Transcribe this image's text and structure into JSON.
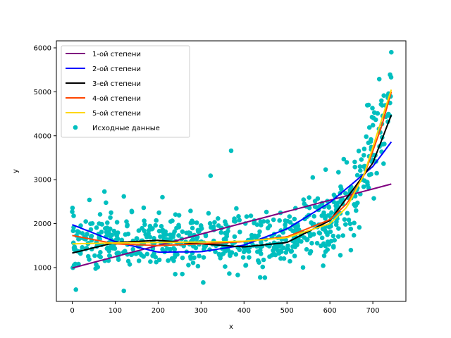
{
  "chart_data": {
    "type": "scatter",
    "title": "",
    "xlabel": "x",
    "ylabel": "y",
    "xlim": [
      -37,
      777
    ],
    "ylim": [
      230,
      6160
    ],
    "xticks": [
      0,
      100,
      200,
      300,
      400,
      500,
      600,
      700
    ],
    "yticks": [
      1000,
      2000,
      3000,
      4000,
      5000,
      6000
    ],
    "xtick_labels": [
      "0",
      "100",
      "200",
      "300",
      "400",
      "500",
      "600",
      "700"
    ],
    "ytick_labels": [
      "1000",
      "2000",
      "3000",
      "4000",
      "5000",
      "6000"
    ],
    "grid": false,
    "legend_position": "top-left",
    "scatter": {
      "name": "Исходные данные",
      "color": "#00bfbf",
      "x_range": [
        0,
        743
      ],
      "count": 700,
      "points": [
        [
          0,
          2270
        ],
        [
          120,
          470
        ],
        [
          322,
          3090
        ],
        [
          370,
          3660
        ],
        [
          305,
          660
        ],
        [
          743,
          5900
        ],
        [
          740,
          5390
        ],
        [
          715,
          5290
        ],
        [
          120,
          2620
        ],
        [
          75,
          2730
        ],
        [
          210,
          2600
        ],
        [
          40,
          2540
        ],
        [
          560,
          3050
        ],
        [
          590,
          3230
        ],
        [
          620,
          3170
        ],
        [
          700,
          3450
        ],
        [
          690,
          4700
        ],
        [
          720,
          4800
        ],
        [
          735,
          4320
        ],
        [
          680,
          3700
        ]
      ]
    },
    "series": [
      {
        "name": "1-ой степени",
        "color": "#800080",
        "x": [
          0,
          743
        ],
        "y": [
          990,
          2900
        ]
      },
      {
        "name": "2-ой степени",
        "color": "#0000ff",
        "x": [
          0,
          100,
          200,
          300,
          400,
          500,
          600,
          700,
          743
        ],
        "y": [
          1975,
          1590,
          1350,
          1360,
          1510,
          1880,
          2480,
          3300,
          3860
        ]
      },
      {
        "name": "3-ей степени",
        "color": "#000000",
        "x": [
          0,
          100,
          200,
          300,
          400,
          500,
          600,
          700,
          743
        ],
        "y": [
          1330,
          1570,
          1620,
          1540,
          1470,
          1570,
          2070,
          3380,
          4470
        ]
      },
      {
        "name": "4-ой степени",
        "color": "#ff4500",
        "x": [
          0,
          100,
          200,
          300,
          400,
          500,
          600,
          640,
          680,
          720,
          743
        ],
        "y": [
          1730,
          1540,
          1500,
          1540,
          1590,
          1700,
          2090,
          2460,
          3110,
          4200,
          5000
        ]
      },
      {
        "name": "5-ой степени",
        "color": "#ffd700",
        "x": [
          0,
          100,
          200,
          300,
          400,
          500,
          600,
          640,
          680,
          720,
          743
        ],
        "y": [
          1540,
          1560,
          1570,
          1580,
          1600,
          1680,
          2000,
          2380,
          3130,
          4350,
          5050
        ]
      }
    ]
  }
}
